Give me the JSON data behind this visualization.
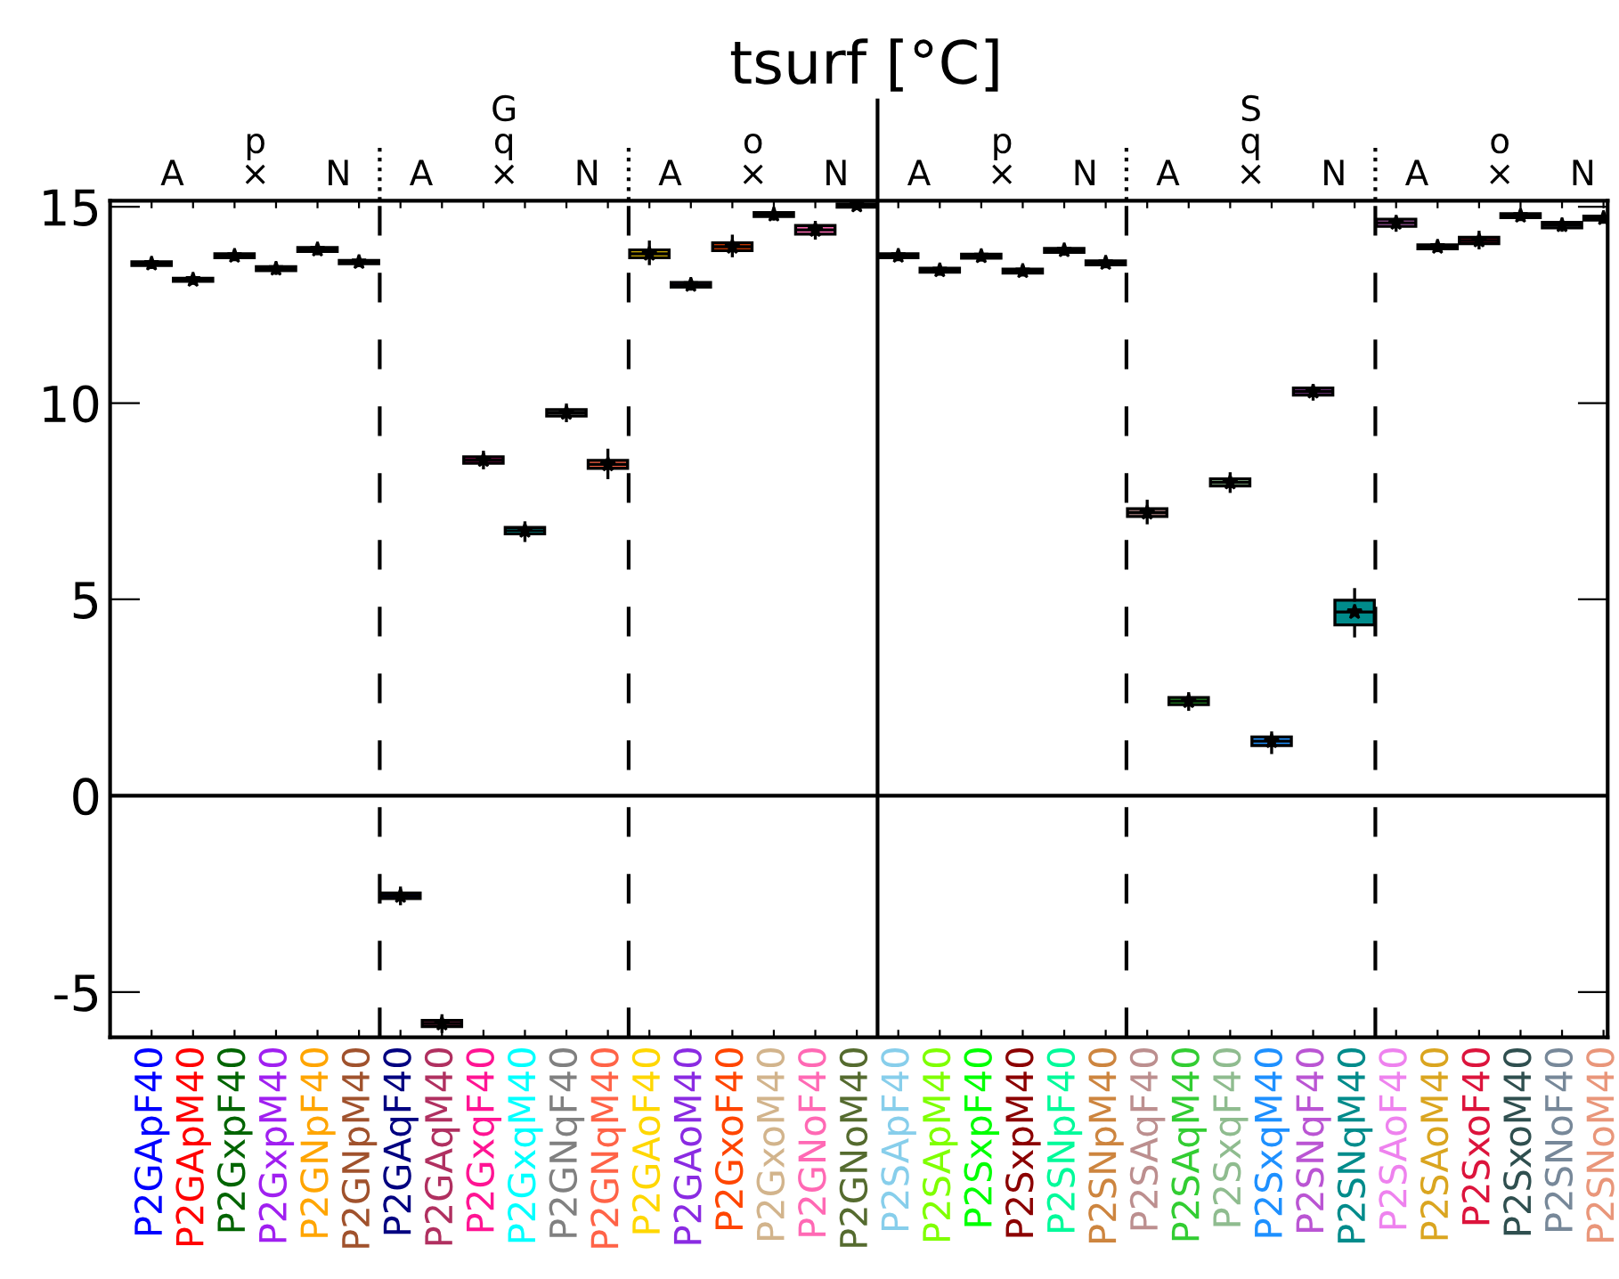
{
  "chart_data": {
    "type": "box",
    "title": "tsurf [°C]",
    "categories": [
      "P2GApF40",
      "P2GApM40",
      "P2GxpF40",
      "P2GxpM40",
      "P2GNpF40",
      "P2GNpM40",
      "P2GAqF40",
      "P2GAqM40",
      "P2GxqF40",
      "P2GxqM40",
      "P2GNqF40",
      "P2GNqM40",
      "P2GAoF40",
      "P2GAoM40",
      "P2GxoF40",
      "P2GxoM40",
      "P2GNoF40",
      "P2GNoM40",
      "P2SApF40",
      "P2SApM40",
      "P2SxpF40",
      "P2SxpM40",
      "P2SNpF40",
      "P2SNpM40",
      "P2SAqF40",
      "P2SAqM40",
      "P2SxqF40",
      "P2SxqM40",
      "P2SNqF40",
      "P2SNqM40",
      "P2SAoF40",
      "P2SAoM40",
      "P2SxoF40",
      "P2SxoM40",
      "P2SNoF40",
      "P2SNoM40"
    ],
    "colors": [
      "#0000ff",
      "#ff0000",
      "#006400",
      "#a020f0",
      "#ffa500",
      "#a0522d",
      "#000080",
      "#b03060",
      "#ff1493",
      "#00ffff",
      "#808080",
      "#ff6347",
      "#ffd700",
      "#8a2be2",
      "#ff4500",
      "#d2b48c",
      "#ff69b4",
      "#556b2f",
      "#87ceeb",
      "#7fff00",
      "#00ff00",
      "#8b0000",
      "#00fa9a",
      "#cd853f",
      "#bc8f8f",
      "#32cd32",
      "#8fbc8f",
      "#1e90ff",
      "#ba55d3",
      "#008b8b",
      "#ee82ee",
      "#daa520",
      "#dc143c",
      "#2f4f4f",
      "#778899",
      "#e9967a"
    ],
    "boxes": [
      {
        "low": 13.45,
        "q1": 13.5,
        "median": 13.55,
        "q3": 13.6,
        "high": 13.65,
        "mean": 13.55
      },
      {
        "low": 13.05,
        "q1": 13.1,
        "median": 13.14,
        "q3": 13.18,
        "high": 13.25,
        "mean": 13.14
      },
      {
        "low": 13.65,
        "q1": 13.7,
        "median": 13.75,
        "q3": 13.8,
        "high": 13.85,
        "mean": 13.75
      },
      {
        "low": 13.3,
        "q1": 13.37,
        "median": 13.42,
        "q3": 13.47,
        "high": 13.55,
        "mean": 13.42
      },
      {
        "low": 13.8,
        "q1": 13.86,
        "median": 13.91,
        "q3": 13.96,
        "high": 14.0,
        "mean": 13.91
      },
      {
        "low": 13.5,
        "q1": 13.55,
        "median": 13.59,
        "q3": 13.63,
        "high": 13.7,
        "mean": 13.59
      },
      {
        "low": -2.75,
        "q1": -2.62,
        "median": -2.55,
        "q3": -2.48,
        "high": -2.35,
        "mean": -2.55
      },
      {
        "low": -6.0,
        "q1": -5.88,
        "median": -5.8,
        "q3": -5.72,
        "high": -5.6,
        "mean": -5.8
      },
      {
        "low": 8.35,
        "q1": 8.47,
        "median": 8.55,
        "q3": 8.63,
        "high": 8.75,
        "mean": 8.55
      },
      {
        "low": 6.5,
        "q1": 6.67,
        "median": 6.75,
        "q3": 6.83,
        "high": 6.95,
        "mean": 6.75
      },
      {
        "low": 9.55,
        "q1": 9.67,
        "median": 9.75,
        "q3": 9.83,
        "high": 9.95,
        "mean": 9.75
      },
      {
        "low": 8.1,
        "q1": 8.34,
        "median": 8.44,
        "q3": 8.54,
        "high": 8.8,
        "mean": 8.44
      },
      {
        "low": 13.55,
        "q1": 13.7,
        "median": 13.8,
        "q3": 13.9,
        "high": 14.1,
        "mean": 13.8
      },
      {
        "low": 12.9,
        "q1": 12.95,
        "median": 13.01,
        "q3": 13.07,
        "high": 13.12,
        "mean": 13.01
      },
      {
        "low": 13.75,
        "q1": 13.88,
        "median": 13.98,
        "q3": 14.08,
        "high": 14.25,
        "mean": 13.98
      },
      {
        "low": 14.68,
        "q1": 14.75,
        "median": 14.8,
        "q3": 14.85,
        "high": 14.91,
        "mean": 14.8
      },
      {
        "low": 14.2,
        "q1": 14.3,
        "median": 14.41,
        "q3": 14.52,
        "high": 14.6,
        "mean": 14.41
      },
      {
        "low": 14.96,
        "q1": 14.99,
        "median": 15.03,
        "q3": 15.07,
        "high": 15.1,
        "mean": 15.03
      },
      {
        "low": 13.65,
        "q1": 13.7,
        "median": 13.75,
        "q3": 13.8,
        "high": 13.85,
        "mean": 13.75
      },
      {
        "low": 13.28,
        "q1": 13.33,
        "median": 13.38,
        "q3": 13.43,
        "high": 13.48,
        "mean": 13.38
      },
      {
        "low": 13.64,
        "q1": 13.69,
        "median": 13.74,
        "q3": 13.79,
        "high": 13.84,
        "mean": 13.74
      },
      {
        "low": 13.26,
        "q1": 13.31,
        "median": 13.36,
        "q3": 13.41,
        "high": 13.46,
        "mean": 13.36
      },
      {
        "low": 13.79,
        "q1": 13.84,
        "median": 13.89,
        "q3": 13.94,
        "high": 13.99,
        "mean": 13.89
      },
      {
        "low": 13.47,
        "q1": 13.52,
        "median": 13.57,
        "q3": 13.62,
        "high": 13.67,
        "mean": 13.57
      },
      {
        "low": 6.95,
        "q1": 7.11,
        "median": 7.21,
        "q3": 7.31,
        "high": 7.5,
        "mean": 7.21
      },
      {
        "low": 2.2,
        "q1": 2.32,
        "median": 2.41,
        "q3": 2.5,
        "high": 2.6,
        "mean": 2.41
      },
      {
        "low": 7.75,
        "q1": 7.89,
        "median": 7.98,
        "q3": 8.07,
        "high": 8.2,
        "mean": 7.98
      },
      {
        "low": 1.1,
        "q1": 1.28,
        "median": 1.39,
        "q3": 1.5,
        "high": 1.6,
        "mean": 1.39
      },
      {
        "low": 10.1,
        "q1": 10.2,
        "median": 10.29,
        "q3": 10.38,
        "high": 10.45,
        "mean": 10.29
      },
      {
        "low": 4.07,
        "q1": 4.35,
        "median": 4.68,
        "q3": 4.98,
        "high": 5.25,
        "mean": 4.68
      },
      {
        "low": 14.4,
        "q1": 14.5,
        "median": 14.59,
        "q3": 14.68,
        "high": 14.75,
        "mean": 14.59
      },
      {
        "low": 13.88,
        "q1": 13.93,
        "median": 13.98,
        "q3": 14.03,
        "high": 14.08,
        "mean": 13.98
      },
      {
        "low": 13.95,
        "q1": 14.06,
        "median": 14.14,
        "q3": 14.22,
        "high": 14.35,
        "mean": 14.14
      },
      {
        "low": 14.67,
        "q1": 14.72,
        "median": 14.77,
        "q3": 14.82,
        "high": 14.87,
        "mean": 14.77
      },
      {
        "low": 14.4,
        "q1": 14.46,
        "median": 14.53,
        "q3": 14.6,
        "high": 14.65,
        "mean": 14.53
      },
      {
        "low": 14.6,
        "q1": 14.66,
        "median": 14.71,
        "q3": 14.76,
        "high": 14.82,
        "mean": 14.71
      }
    ],
    "ylim": [
      -6.15,
      15.15
    ],
    "yticks": [
      -5,
      0,
      5,
      10,
      15
    ],
    "ref_lines": [
      {
        "axis": "y",
        "value": 0,
        "line_style": "solid"
      }
    ],
    "annotations": [
      "A",
      "p\n×",
      "N",
      "A",
      "G\nq\n×",
      "N",
      "A",
      "o\n×",
      "N",
      "A",
      "p\n×",
      "N",
      "A",
      "S\nq\n×",
      "N",
      "A",
      "o\n×",
      "N"
    ],
    "grid": false,
    "legend": false
  }
}
